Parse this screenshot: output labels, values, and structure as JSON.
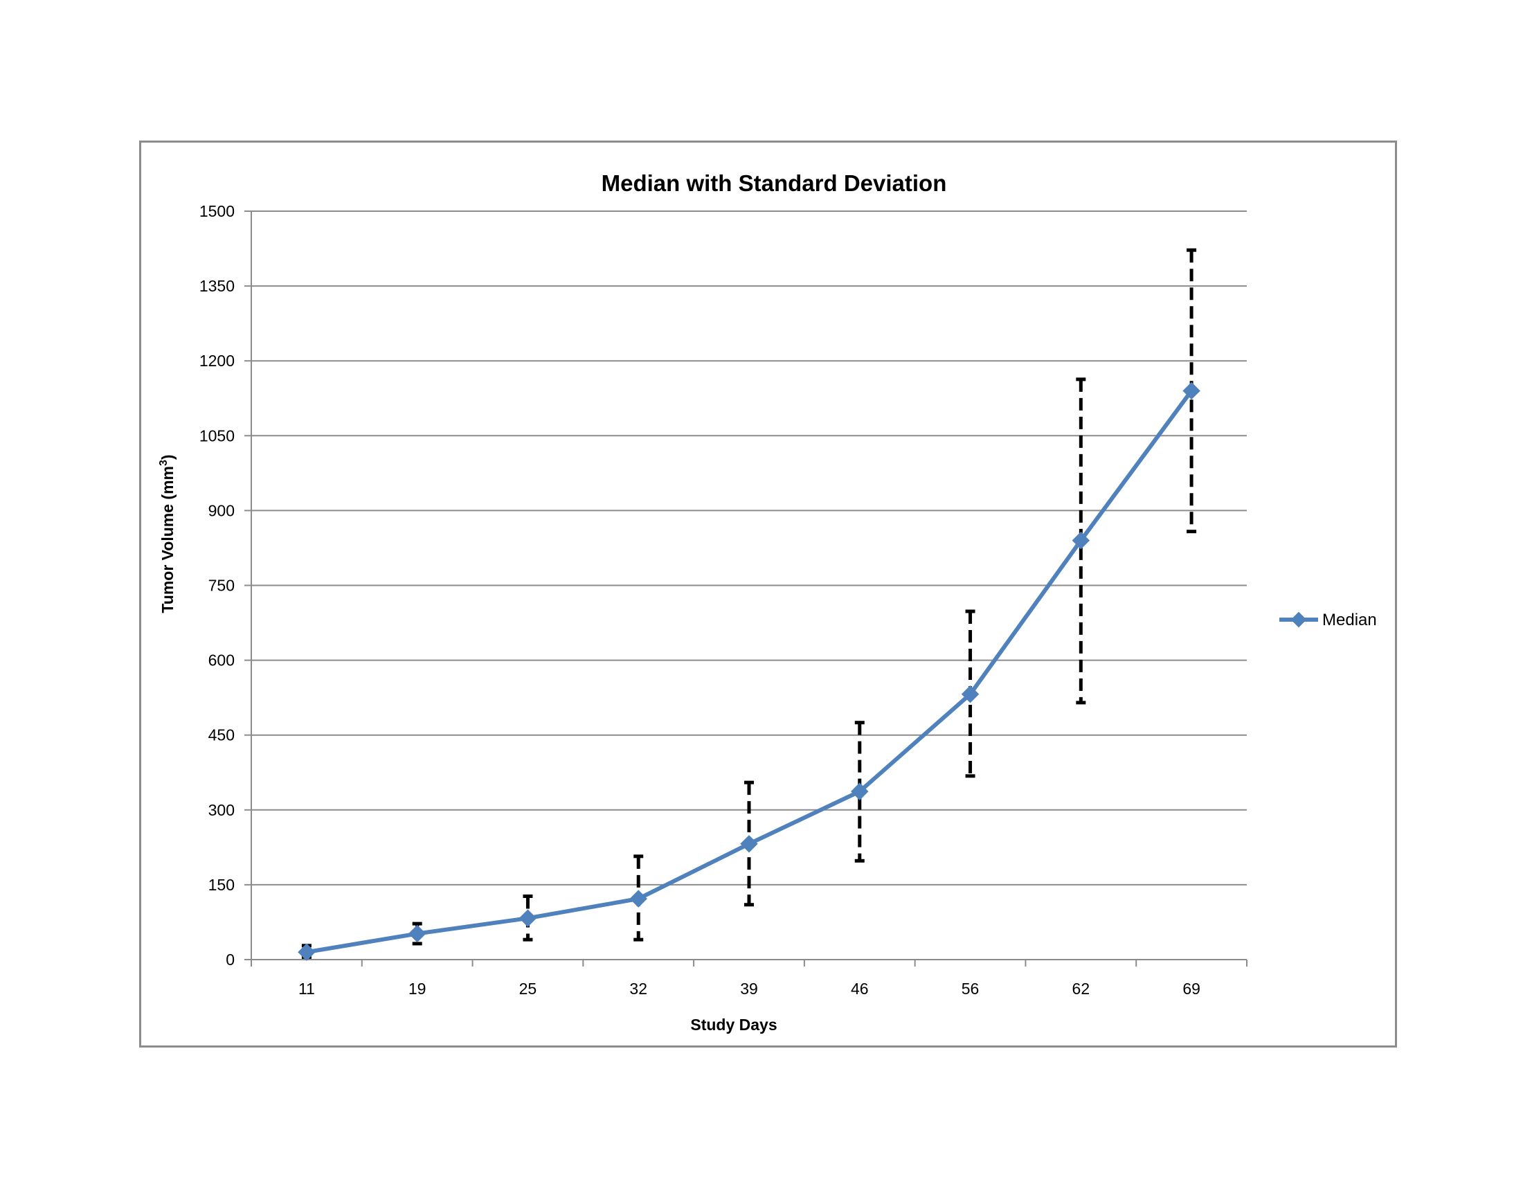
{
  "chart_data": {
    "type": "line",
    "title": "Median with Standard Deviation",
    "xlabel": "Study Days",
    "ylabel": "Tumor Volume (mm",
    "ylabel_superscript": "3",
    "ylabel_suffix": ")",
    "ylim": [
      0,
      1500
    ],
    "y_ticks": [
      "0",
      "150",
      "300",
      "450",
      "600",
      "750",
      "900",
      "1050",
      "1200",
      "1350",
      "1500"
    ],
    "categories": [
      "11",
      "19",
      "25",
      "32",
      "39",
      "46",
      "56",
      "62",
      "69"
    ],
    "series": [
      {
        "name": "Median",
        "values": [
          15,
          52,
          83,
          122,
          232,
          337,
          532,
          840,
          1140
        ],
        "error_low": [
          5,
          32,
          40,
          40,
          110,
          198,
          368,
          515,
          858
        ],
        "error_high": [
          28,
          72,
          127,
          207,
          355,
          475,
          698,
          1163,
          1422
        ]
      }
    ],
    "grid": true,
    "legend_position": "right",
    "line_color": "#4f81bd",
    "error_bar_color": "#000000",
    "error_bar_style": "dashed"
  }
}
